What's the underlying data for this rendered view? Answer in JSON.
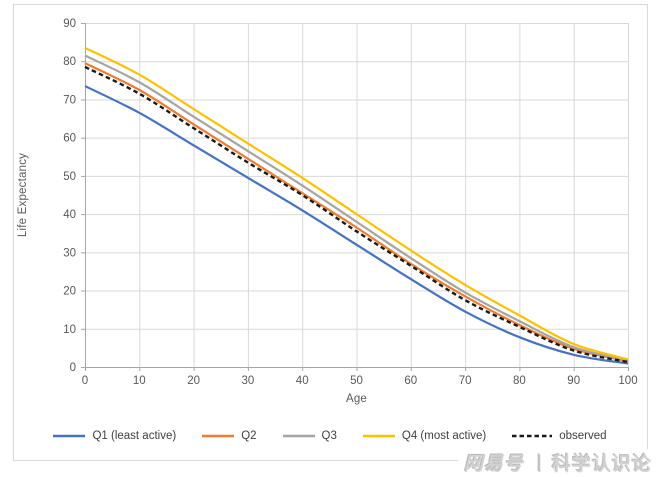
{
  "watermark": {
    "brand": "网易号",
    "separator": "丨",
    "name": "科学认识论"
  },
  "chart_data": {
    "type": "line",
    "title": "",
    "xlabel": "Age",
    "ylabel": "Life Expectancy",
    "xlim": [
      0,
      100
    ],
    "ylim": [
      0,
      90
    ],
    "xticks": [
      0,
      10,
      20,
      30,
      40,
      50,
      60,
      70,
      80,
      90,
      100
    ],
    "yticks": [
      0,
      10,
      20,
      30,
      40,
      50,
      60,
      70,
      80,
      90
    ],
    "grid": true,
    "legend_position": "bottom",
    "x": [
      0,
      10,
      20,
      30,
      40,
      50,
      60,
      70,
      80,
      90,
      100
    ],
    "series": [
      {
        "name": "Q1 (least active)",
        "color": "#4472C4",
        "dash": false,
        "values": [
          73.5,
          66.5,
          58.0,
          49.5,
          41.0,
          32.0,
          23.0,
          14.5,
          7.8,
          3.2,
          0.9
        ]
      },
      {
        "name": "Q2",
        "color": "#ED7D31",
        "dash": false,
        "values": [
          79.5,
          72.5,
          63.5,
          54.5,
          45.5,
          36.5,
          27.0,
          18.5,
          11.0,
          4.8,
          1.5
        ]
      },
      {
        "name": "Q3",
        "color": "#A5A5A5",
        "dash": false,
        "values": [
          81.5,
          74.5,
          65.5,
          56.5,
          47.5,
          38.0,
          28.5,
          19.5,
          12.0,
          5.2,
          1.7
        ]
      },
      {
        "name": "Q4 (most active)",
        "color": "#FFC000",
        "dash": false,
        "values": [
          83.5,
          76.5,
          67.5,
          58.5,
          49.5,
          40.0,
          30.5,
          21.5,
          13.5,
          6.0,
          2.0
        ]
      },
      {
        "name": "observed",
        "color": "#1a1a1a",
        "dash": true,
        "values": [
          78.5,
          71.5,
          62.5,
          53.5,
          45.0,
          35.5,
          26.5,
          17.5,
          10.5,
          4.3,
          1.3
        ]
      }
    ],
    "colors": {
      "gridline": "#D9D9D9",
      "axis_line": "#A6A6A6",
      "tick_label": "#595959",
      "frame": "#D9D9D9"
    }
  }
}
